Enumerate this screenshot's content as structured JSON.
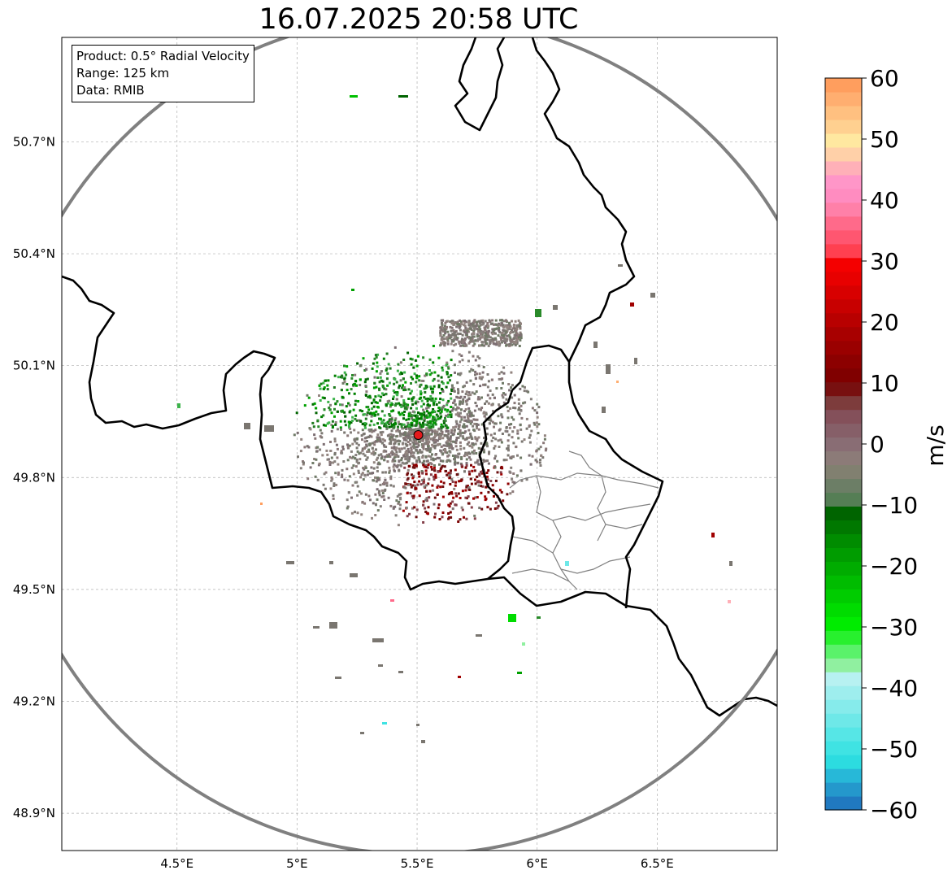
{
  "title": "16.07.2025 20:58 UTC",
  "info": {
    "product": "Product: 0.5° Radial Velocity",
    "range": "Range: 125 km",
    "data": "Data: RMIB"
  },
  "map": {
    "lon_range": [
      4.02,
      7.0
    ],
    "lat_range": [
      48.8,
      50.98
    ],
    "lon_ticks": [
      "4.5°E",
      "5°E",
      "5.5°E",
      "6°E",
      "6.5°E"
    ],
    "lat_ticks": [
      "50.7°N",
      "50.4°N",
      "50.1°N",
      "49.8°N",
      "49.5°N",
      "49.2°N",
      "48.9°N"
    ],
    "radar_site": {
      "lon": 5.505,
      "lat": 49.914
    },
    "range_ring_km": 125,
    "colors": {
      "border": "#000000",
      "admin": "#808080",
      "range_ring": "#808080",
      "radar_marker": "#e41a1c",
      "grid": "#b0b0b0"
    }
  },
  "colorbar": {
    "label": "m/s",
    "min": -60,
    "max": 60,
    "ticks": [
      "60",
      "50",
      "40",
      "30",
      "20",
      "10",
      "0",
      "−10",
      "−20",
      "−30",
      "−40",
      "−50",
      "−60"
    ],
    "colors_bottom_to_top": [
      "#2079c0",
      "#2498cc",
      "#27b8d8",
      "#2cdce0",
      "#3fe3e3",
      "#56e6e6",
      "#6ee8e8",
      "#86ebeb",
      "#9eeeee",
      "#b7f1f1",
      "#90f0a0",
      "#5af26a",
      "#28f02e",
      "#00ec00",
      "#00dc00",
      "#00cc00",
      "#00bc00",
      "#00ac00",
      "#009c00",
      "#008c00",
      "#007800",
      "#006400",
      "#557e55",
      "#6c7e66",
      "#818070",
      "#8c7b78",
      "#896d74",
      "#865f68",
      "#84505a",
      "#7d3c3c",
      "#781010",
      "#800000",
      "#8c0000",
      "#9a0000",
      "#a80000",
      "#b80000",
      "#c80000",
      "#d80000",
      "#e80000",
      "#f40000",
      "#ff4050",
      "#ff5670",
      "#ff6a8a",
      "#ff80a8",
      "#ff8cc0",
      "#ff96c8",
      "#ffb0b8",
      "#ffd0a8",
      "#ffe8a0",
      "#ffd090",
      "#ffc080",
      "#ffae70",
      "#ff9e5e"
    ]
  }
}
